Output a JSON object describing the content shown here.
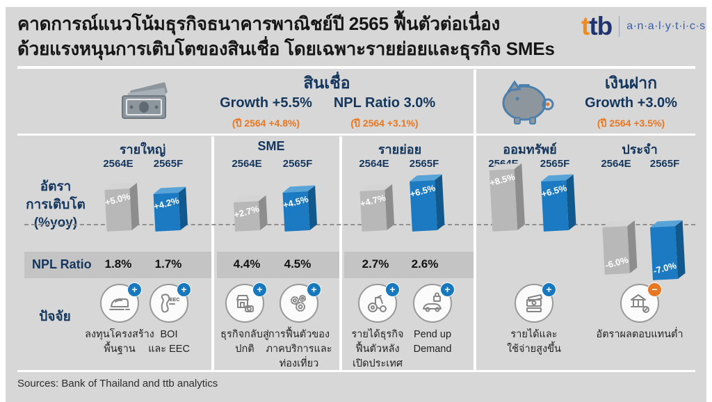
{
  "colors": {
    "background": "#d7d7d7",
    "accent_blue": "#1878be",
    "accent_orange": "#e87722",
    "navy_text": "#14365c",
    "bar_gray": "#b8b8b8",
    "bar_blue": "#1b7ac1"
  },
  "title": {
    "line1": "คาดการณ์แนวโน้มธุรกิจธนาคารพาณิชย์ปี 2565 ฟื้นตัวต่อเนื่อง",
    "line2": "ด้วยแรงหนุนการเติบโตของสินเชื่อ โดยเฉพาะรายย่อยและธุรกิจ SMEs"
  },
  "logo": {
    "brand_first": "t",
    "brand_rest": "tb",
    "suffix": "a·n·a·l·y·t·i·c·s"
  },
  "sections": {
    "loans": {
      "name": "สินเชื่อ",
      "growth": "Growth +5.5%",
      "growth_prev": "(ปี 2564 +4.8%)",
      "npl": "NPL Ratio 3.0%",
      "npl_prev": "(ปี 2564 +3.1%)"
    },
    "deposits": {
      "name": "เงินฝาก",
      "growth": "Growth +3.0%",
      "growth_prev": "(ปี 2564 +3.5%)"
    }
  },
  "row_labels": {
    "growth": "อัตรา\nการเติบโต\n(%yoy)",
    "npl": "NPL  Ratio",
    "factors": "ปัจจัย"
  },
  "columns": [
    {
      "name": "รายใหญ่",
      "years": [
        "2564E",
        "2565F"
      ],
      "bars": [
        {
          "year": "2564E",
          "value": 5.0,
          "label": "+5.0%"
        },
        {
          "year": "2565F",
          "value": 4.2,
          "label": "+4.2%"
        }
      ],
      "npl": [
        "1.8%",
        "1.7%"
      ],
      "factors": [
        {
          "icon": "train-icon",
          "badge": "+",
          "text": "ลงทุนโครงสร้าง\nพื้นฐาน"
        },
        {
          "icon": "eec-map-icon",
          "badge": "+",
          "text": "BOI\nและ EEC"
        }
      ]
    },
    {
      "name": "SME",
      "years": [
        "2564E",
        "2565F"
      ],
      "bars": [
        {
          "year": "2564E",
          "value": 2.7,
          "label": "+2.7%"
        },
        {
          "year": "2565F",
          "value": 4.5,
          "label": "+4.5%"
        }
      ],
      "npl": [
        "4.4%",
        "4.5%"
      ],
      "factors": [
        {
          "icon": "shop-icon",
          "badge": "+",
          "text": "ธุรกิจกลับสู่\nปกติ"
        },
        {
          "icon": "gears-icon",
          "badge": "+",
          "text": "การฟื้นตัวของ\nภาคบริการและ\nท่องเที่ยว"
        }
      ]
    },
    {
      "name": "รายย่อย",
      "years": [
        "2564E",
        "2565F"
      ],
      "bars": [
        {
          "year": "2564E",
          "value": 4.7,
          "label": "+4.7%"
        },
        {
          "year": "2565F",
          "value": 6.5,
          "label": "+6.5%"
        }
      ],
      "npl": [
        "2.7%",
        "2.6%"
      ],
      "factors": [
        {
          "icon": "tractor-icon",
          "badge": "+",
          "text": "รายได้ธุรกิจ\nฟื้นตัวหลัง\nเปิดประเทศ"
        },
        {
          "icon": "car-lock-icon",
          "badge": "+",
          "text": "Pend up\nDemand"
        }
      ]
    },
    {
      "name": "ออมทรัพย์",
      "years": [
        "2564E",
        "2565F"
      ],
      "bars": [
        {
          "year": "2564E",
          "value": 8.5,
          "label": "+8.5%"
        },
        {
          "year": "2565F",
          "value": 6.5,
          "label": "+6.5%"
        }
      ],
      "factors": [
        {
          "icon": "banknotes-icon",
          "badge": "+",
          "text": "รายได้และ\nใช้จ่ายสูงขึ้น"
        }
      ]
    },
    {
      "name": "ประจำ",
      "years": [
        "2564E",
        "2565F"
      ],
      "bars": [
        {
          "year": "2564E",
          "value": -6.0,
          "label": "-6.0%"
        },
        {
          "year": "2565F",
          "value": -7.0,
          "label": "-7.0%"
        }
      ],
      "factors": [
        {
          "icon": "bank-low-return-icon",
          "badge": "−",
          "text": "อัตราผลตอบแทนต่ำ"
        }
      ]
    }
  ],
  "footer": {
    "sources": "Sources: Bank of Thailand  and ttb analytics"
  },
  "chart_data": {
    "type": "bar",
    "title": "อัตราการเติบโต (%yoy) ปี 2564E เทียบ 2565F",
    "categories": [
      "รายใหญ่",
      "SME",
      "รายย่อย",
      "ออมทรัพย์",
      "ประจำ"
    ],
    "series": [
      {
        "name": "2564E",
        "values": [
          5.0,
          2.7,
          4.7,
          8.5,
          -6.0
        ]
      },
      {
        "name": "2565F",
        "values": [
          4.2,
          4.5,
          6.5,
          6.5,
          -7.0
        ]
      }
    ],
    "groups": {
      "loans_columns": [
        "รายใหญ่",
        "SME",
        "รายย่อย"
      ],
      "deposits_columns": [
        "ออมทรัพย์",
        "ประจำ"
      ]
    },
    "npl_ratio_table": {
      "รายใหญ่": [
        "1.8%",
        "1.7%"
      ],
      "SME": [
        "4.4%",
        "4.5%"
      ],
      "รายย่อย": [
        "2.7%",
        "2.6%"
      ]
    },
    "summary": {
      "loans": {
        "growth_2565F": "+5.5%",
        "growth_2564": "+4.8%",
        "npl_2565F": "3.0%",
        "npl_2564": "3.1%"
      },
      "deposits": {
        "growth_2565F": "+3.0%",
        "growth_2564": "+3.5%"
      }
    },
    "ylim": [
      -8,
      9
    ],
    "grid": false,
    "baseline": 0,
    "legend_position": "column-headers"
  }
}
